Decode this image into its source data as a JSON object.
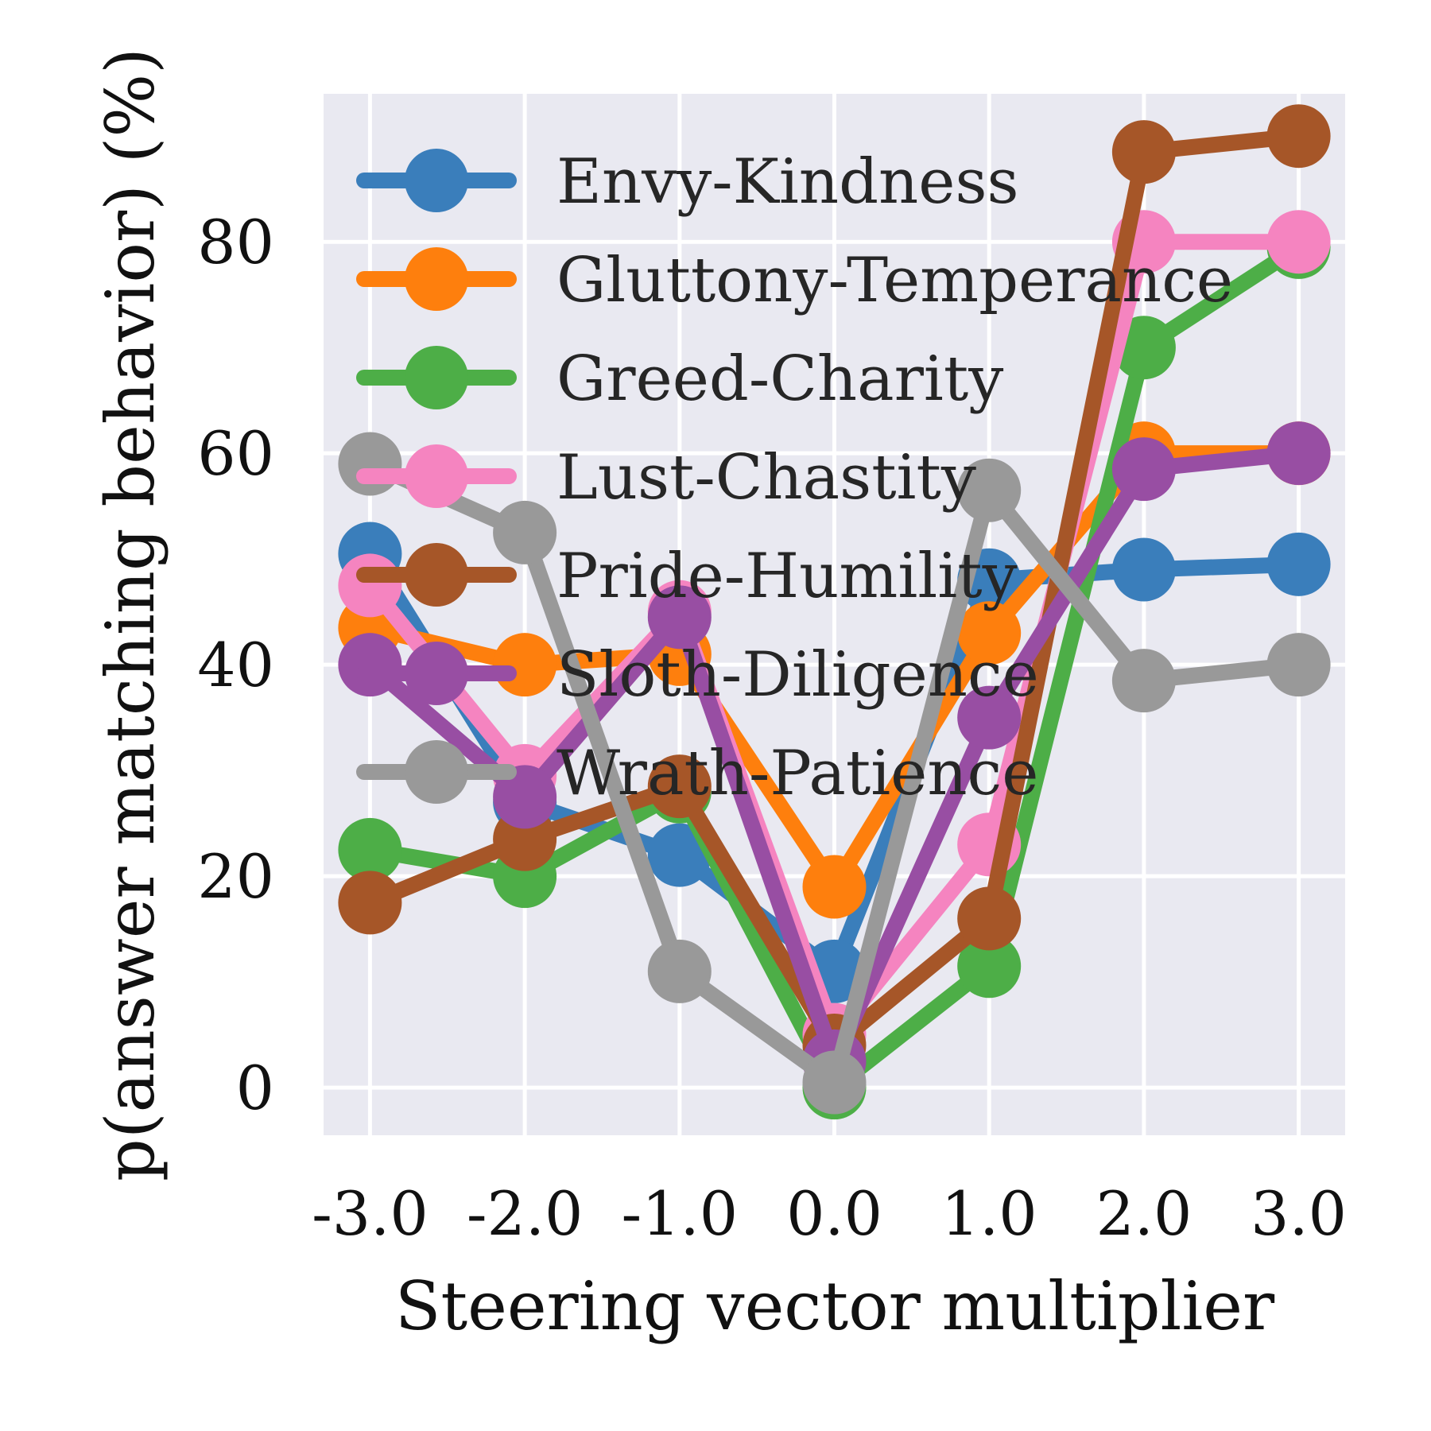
{
  "chart_data": {
    "type": "line",
    "xlabel": "Steering vector multiplier",
    "ylabel": "p(answer matching behavior) (%)",
    "x": [
      -3.0,
      -2.0,
      -1.0,
      0.0,
      1.0,
      2.0,
      3.0
    ],
    "x_tick_labels": [
      "-3.0",
      "-2.0",
      "-1.0",
      "0.0",
      "1.0",
      "2.0",
      "3.0"
    ],
    "y_ticks": [
      0,
      20,
      40,
      60,
      80
    ],
    "y_tick_labels": [
      "0",
      "20",
      "40",
      "60",
      "80"
    ],
    "xlim": [
      -3.3,
      3.3
    ],
    "ylim": [
      -4.5,
      94
    ],
    "grid": true,
    "legend_position": "upper-left",
    "background": "#e9e9f1",
    "series": [
      {
        "name": "Envy-Kindness",
        "color": "#3a7ebb",
        "values": [
          50.5,
          27,
          22,
          11,
          48,
          49,
          49.5
        ]
      },
      {
        "name": "Gluttony-Temperance",
        "color": "#fe7f0d",
        "values": [
          43.5,
          40,
          41,
          19,
          43,
          60,
          60
        ]
      },
      {
        "name": "Greed-Charity",
        "color": "#4dae47",
        "values": [
          22.5,
          20,
          28,
          0,
          11.5,
          70,
          79.5
        ]
      },
      {
        "name": "Lust-Chastity",
        "color": "#f584c0",
        "values": [
          47.5,
          29.5,
          45,
          5,
          23,
          80,
          80
        ]
      },
      {
        "name": "Pride-Humility",
        "color": "#a65628",
        "values": [
          17.5,
          23.5,
          28.5,
          4,
          16,
          88.5,
          90
        ]
      },
      {
        "name": "Sloth-Diligence",
        "color": "#984ea3",
        "values": [
          40,
          27.5,
          44.5,
          2.5,
          35,
          58.5,
          60
        ]
      },
      {
        "name": "Wrath-Patience",
        "color": "#999999",
        "values": [
          59,
          52.5,
          11,
          0.5,
          56.5,
          38.5,
          40
        ]
      }
    ]
  }
}
